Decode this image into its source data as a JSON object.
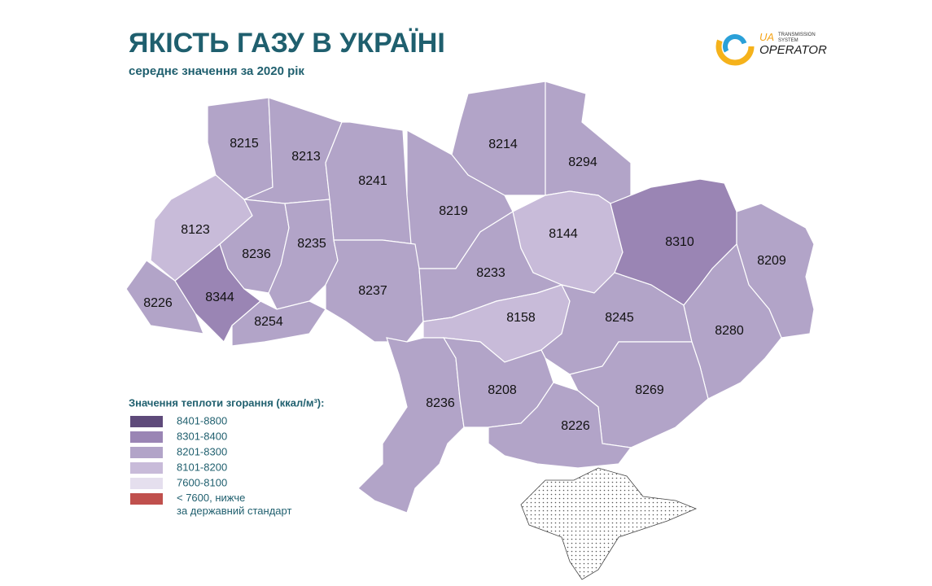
{
  "header": {
    "title": "ЯКІСТЬ ГАЗУ В УКРАЇНІ",
    "subtitle": "середнє значення за 2020 рік"
  },
  "logo": {
    "mark": "UA",
    "line1": "TRANSMISSION",
    "line2": "SYSTEM",
    "name": "OPERATOR"
  },
  "regions": [
    {
      "value": 8215,
      "color": "#b2a4c8"
    },
    {
      "value": 8213,
      "color": "#b2a4c8"
    },
    {
      "value": 8241,
      "color": "#b2a4c8"
    },
    {
      "value": 8214,
      "color": "#b2a4c8"
    },
    {
      "value": 8294,
      "color": "#b2a4c8"
    },
    {
      "value": 8123,
      "color": "#c8bbd9"
    },
    {
      "value": 8219,
      "color": "#b2a4c8"
    },
    {
      "value": 8144,
      "color": "#c8bbd9"
    },
    {
      "value": 8310,
      "color": "#9a85b4"
    },
    {
      "value": 8236,
      "color": "#b2a4c8"
    },
    {
      "value": 8235,
      "color": "#b2a4c8"
    },
    {
      "value": 8209,
      "color": "#b2a4c8"
    },
    {
      "value": 8226,
      "color": "#b2a4c8"
    },
    {
      "value": 8344,
      "color": "#9a85b4"
    },
    {
      "value": 8237,
      "color": "#b2a4c8"
    },
    {
      "value": 8233,
      "color": "#b2a4c8"
    },
    {
      "value": 8254,
      "color": "#b2a4c8"
    },
    {
      "value": 8158,
      "color": "#c8bbd9"
    },
    {
      "value": 8245,
      "color": "#b2a4c8"
    },
    {
      "value": 8280,
      "color": "#b2a4c8"
    },
    {
      "value": 8236,
      "color": "#b2a4c8"
    },
    {
      "value": 8208,
      "color": "#b2a4c8"
    },
    {
      "value": 8269,
      "color": "#b2a4c8"
    },
    {
      "value": 8226,
      "color": "#b2a4c8"
    }
  ],
  "legend": {
    "title": "Значення теплоти згорання (ккал/м³):",
    "items": [
      {
        "label": "8401-8800",
        "color": "#5e4a7a"
      },
      {
        "label": "8301-8400",
        "color": "#9a85b4"
      },
      {
        "label": "8201-8300",
        "color": "#b2a4c8"
      },
      {
        "label": "8101-8200",
        "color": "#c8bbd9"
      },
      {
        "label": "7600-8100",
        "color": "#e5dfee"
      },
      {
        "label": "< 7600, нижче за державний стандарт",
        "color": "#c0504d"
      }
    ]
  }
}
